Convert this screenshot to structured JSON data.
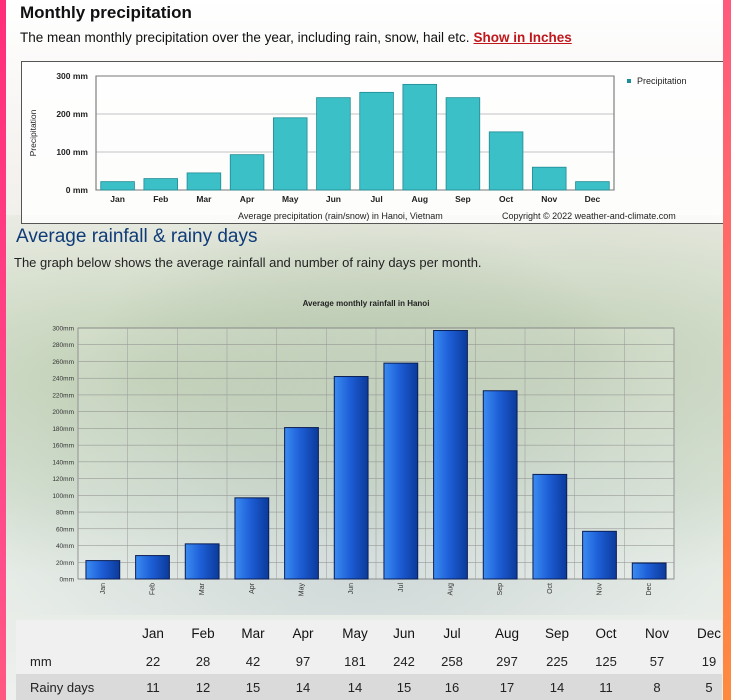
{
  "section1": {
    "title": "Monthly precipitation",
    "subtitle": "The mean monthly precipitation over the year, including rain, snow, hail etc.",
    "link": "Show in Inches"
  },
  "section2": {
    "title": "Average rainfall & rainy days",
    "subtitle": "The graph below shows the average rainfall and number of rainy days per month."
  },
  "colors": {
    "bar1": "#3cc0c8",
    "bar2": "#1e5fd8",
    "link": "#c0171c",
    "title2": "#0f3c78"
  },
  "chart_data": [
    {
      "type": "bar",
      "categories": [
        "Jan",
        "Feb",
        "Mar",
        "Apr",
        "May",
        "Jun",
        "Jul",
        "Aug",
        "Sep",
        "Oct",
        "Nov",
        "Dec"
      ],
      "series": [
        {
          "name": "Precipitation",
          "values": [
            22,
            30,
            45,
            93,
            190,
            243,
            257,
            278,
            243,
            153,
            60,
            22
          ]
        }
      ],
      "ylabel": "Precipitation",
      "yticks": [
        "0 mm",
        "100 mm",
        "200 mm",
        "300 mm"
      ],
      "ylim": [
        0,
        300
      ],
      "caption": "Average precipitation (rain/snow) in Hanoi, Vietnam",
      "copyright": "Copyright © 2022  weather-and-climate.com",
      "legend": "right",
      "grid": true
    },
    {
      "type": "bar",
      "title": "Average monthly rainfall in Hanoi",
      "categories": [
        "Jan",
        "Feb",
        "Mar",
        "Apr",
        "May",
        "Jun",
        "Jul",
        "Aug",
        "Sep",
        "Oct",
        "Nov",
        "Dec"
      ],
      "values": [
        22,
        28,
        42,
        97,
        181,
        242,
        258,
        297,
        225,
        125,
        57,
        19
      ],
      "yticks": [
        "0mm",
        "20mm",
        "40mm",
        "60mm",
        "80mm",
        "100mm",
        "120mm",
        "140mm",
        "160mm",
        "180mm",
        "200mm",
        "220mm",
        "240mm",
        "260mm",
        "280mm",
        "300mm"
      ],
      "ylim": [
        0,
        300
      ],
      "grid": true
    }
  ],
  "table": {
    "months": [
      "Jan",
      "Feb",
      "Mar",
      "Apr",
      "May",
      "Jun",
      "Jul",
      "Aug",
      "Sep",
      "Oct",
      "Nov",
      "Dec"
    ],
    "rows": [
      {
        "label": "mm",
        "values": [
          "22",
          "28",
          "42",
          "97",
          "181",
          "242",
          "258",
          "297",
          "225",
          "125",
          "57",
          "19"
        ]
      },
      {
        "label": "Rainy days",
        "values": [
          "11",
          "12",
          "15",
          "14",
          "14",
          "15",
          "16",
          "17",
          "14",
          "11",
          "8",
          "5"
        ]
      }
    ]
  }
}
